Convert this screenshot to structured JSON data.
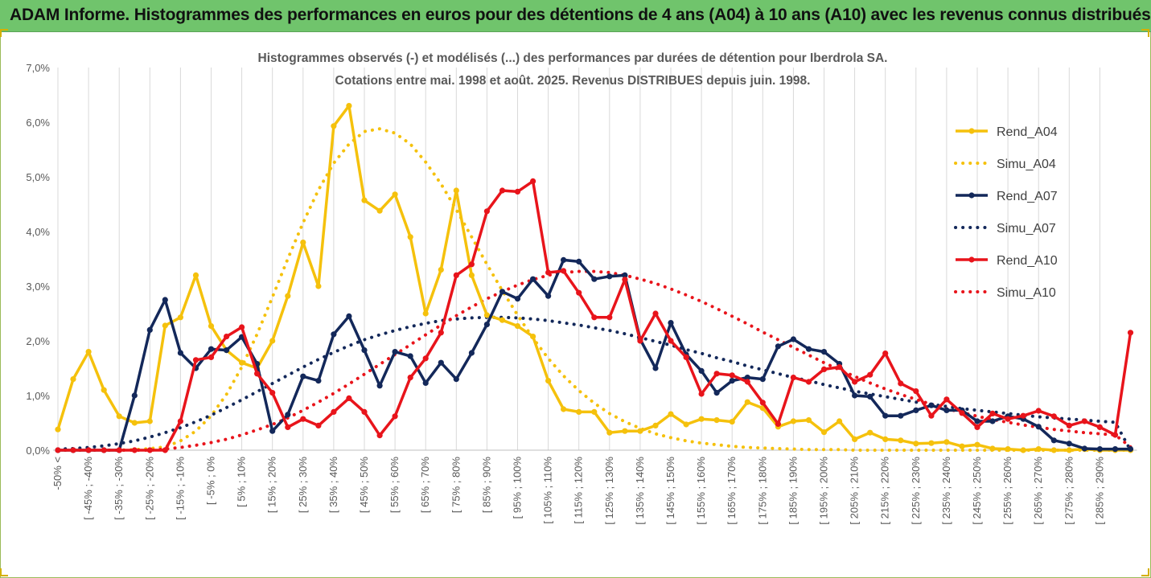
{
  "banner": {
    "title": "ADAM Informe. Histogrammes des performances en euros pour des détentions de 4 ans (A04) à 10 ans (A10) avec les revenus connus distribués"
  },
  "chart_data": {
    "type": "line",
    "title_line1": "Histogrammes observés (-) et modélisés (...) des performances par durées de détention pour Iberdrola SA.",
    "title_line2": "Cotations entre mai. 1998 et août. 2025.  Revenus DISTRIBUES depuis juin. 1998.",
    "ylim": [
      0,
      7
    ],
    "yticks": [
      "0,0%",
      "1,0%",
      "2,0%",
      "3,0%",
      "4,0%",
      "5,0%",
      "6,0%",
      "7,0%"
    ],
    "grid": "vertical",
    "legend_position": "right",
    "x_tick_labels": [
      "-50% <",
      "[ -45% ; -40%",
      "[ -35% ; -30%",
      "[ -25% ; -20%",
      "[ -15% ; -10%",
      "[ -5% ; 0%",
      "[ 5% ; 10%",
      "[ 15% ; 20%",
      "[ 25% ; 30%",
      "[ 35% ; 40%",
      "[ 45% ; 50%",
      "[ 55% ; 60%",
      "[ 65% ; 70%",
      "[ 75% ; 80%",
      "[ 85% ; 90%",
      "[ 95% ; 100%",
      "[ 105% ; 110%",
      "[ 115% ; 120%",
      "[ 125% ; 130%",
      "[ 135% ; 140%",
      "[ 145% ; 150%",
      "[ 155% ; 160%",
      "[ 165% ; 170%",
      "[ 175% ; 180%",
      "[ 185% ; 190%",
      "[ 195% ; 200%",
      "[ 205% ; 210%",
      "[ 215% ; 220%",
      "[ 225% ; 230%",
      "[ 235% ; 240%",
      "[ 245% ; 250%",
      "[ 255% ; 260%",
      "[ 265% ; 270%",
      "[ 275% ; 280%",
      "[ 285% ; 290%"
    ],
    "series": [
      {
        "name": "Rend_A04",
        "style": "solid",
        "color": "#f5c10c",
        "values": [
          0.38,
          1.3,
          1.8,
          1.1,
          0.62,
          0.5,
          0.53,
          2.28,
          2.43,
          3.2,
          2.27,
          1.83,
          1.6,
          1.5,
          2.0,
          2.82,
          3.8,
          3.0,
          5.93,
          6.3,
          4.57,
          4.38,
          4.68,
          3.9,
          2.5,
          3.3,
          4.75,
          3.2,
          2.47,
          2.38,
          2.27,
          2.08,
          1.27,
          0.75,
          0.7,
          0.7,
          0.32,
          0.35,
          0.35,
          0.45,
          0.66,
          0.47,
          0.57,
          0.55,
          0.52,
          0.88,
          0.77,
          0.43,
          0.53,
          0.55,
          0.33,
          0.53,
          0.2,
          0.32,
          0.2,
          0.18,
          0.12,
          0.13,
          0.15,
          0.07,
          0.1,
          0.03,
          0.02,
          0.0,
          0.02,
          0.0,
          0.0,
          0.02,
          0.0,
          0.0,
          0.0
        ]
      },
      {
        "name": "Simu_A04",
        "style": "dotted",
        "color": "#f5c10c",
        "values": [
          0.0,
          0.0,
          0.0,
          0.0,
          0.0,
          0.01,
          0.03,
          0.06,
          0.17,
          0.35,
          0.63,
          1.02,
          1.52,
          2.12,
          2.8,
          3.5,
          4.16,
          4.76,
          5.25,
          5.6,
          5.83,
          5.88,
          5.8,
          5.6,
          5.27,
          4.87,
          4.4,
          3.9,
          3.4,
          2.92,
          2.47,
          2.05,
          1.68,
          1.36,
          1.09,
          0.86,
          0.67,
          0.52,
          0.4,
          0.3,
          0.23,
          0.17,
          0.13,
          0.1,
          0.07,
          0.05,
          0.04,
          0.03,
          0.02,
          0.01,
          0.01,
          0.01,
          0.0,
          0.0,
          0.0,
          0.0,
          0.0,
          0.0,
          0.0,
          0.0,
          0.0,
          0.0,
          0.0,
          0.0,
          0.0,
          0.0,
          0.0,
          0.0,
          0.0,
          0.0,
          0.0
        ]
      },
      {
        "name": "Rend_A07",
        "style": "solid",
        "color": "#13285a",
        "values": [
          0.0,
          0.0,
          0.0,
          0.0,
          0.0,
          1.0,
          2.2,
          2.75,
          1.78,
          1.5,
          1.85,
          1.83,
          2.07,
          1.58,
          0.35,
          0.65,
          1.35,
          1.27,
          2.12,
          2.45,
          1.83,
          1.18,
          1.8,
          1.72,
          1.23,
          1.6,
          1.3,
          1.78,
          2.3,
          2.9,
          2.77,
          3.13,
          2.82,
          3.48,
          3.45,
          3.13,
          3.18,
          3.2,
          2.03,
          1.5,
          2.33,
          1.75,
          1.45,
          1.05,
          1.27,
          1.33,
          1.3,
          1.9,
          2.03,
          1.85,
          1.8,
          1.58,
          1.0,
          0.98,
          0.63,
          0.63,
          0.73,
          0.82,
          0.73,
          0.73,
          0.53,
          0.53,
          0.62,
          0.57,
          0.43,
          0.18,
          0.12,
          0.03,
          0.02,
          0.02,
          0.02
        ]
      },
      {
        "name": "Simu_A07",
        "style": "dotted",
        "color": "#13285a",
        "values": [
          0.02,
          0.03,
          0.05,
          0.08,
          0.12,
          0.17,
          0.24,
          0.32,
          0.41,
          0.52,
          0.64,
          0.78,
          0.92,
          1.07,
          1.22,
          1.37,
          1.52,
          1.66,
          1.79,
          1.91,
          2.02,
          2.11,
          2.19,
          2.26,
          2.32,
          2.37,
          2.4,
          2.42,
          2.43,
          2.43,
          2.42,
          2.4,
          2.37,
          2.33,
          2.29,
          2.24,
          2.19,
          2.13,
          2.06,
          1.99,
          1.92,
          1.84,
          1.77,
          1.69,
          1.62,
          1.54,
          1.47,
          1.4,
          1.33,
          1.27,
          1.2,
          1.14,
          1.08,
          1.03,
          0.98,
          0.93,
          0.88,
          0.84,
          0.8,
          0.76,
          0.73,
          0.7,
          0.67,
          0.64,
          0.61,
          0.59,
          0.57,
          0.55,
          0.53,
          0.51,
          0.0
        ]
      },
      {
        "name": "Rend_A10",
        "style": "solid",
        "color": "#e8141b",
        "values": [
          0.0,
          0.0,
          0.0,
          0.0,
          0.0,
          0.0,
          0.0,
          0.0,
          0.53,
          1.65,
          1.7,
          2.08,
          2.25,
          1.4,
          1.05,
          0.42,
          0.57,
          0.45,
          0.7,
          0.95,
          0.7,
          0.27,
          0.62,
          1.33,
          1.68,
          2.15,
          3.2,
          3.4,
          4.37,
          4.75,
          4.73,
          4.92,
          3.25,
          3.28,
          2.88,
          2.43,
          2.43,
          3.12,
          2.0,
          2.5,
          2.0,
          1.7,
          1.03,
          1.4,
          1.37,
          1.25,
          0.87,
          0.48,
          1.33,
          1.25,
          1.48,
          1.52,
          1.25,
          1.38,
          1.77,
          1.22,
          1.08,
          0.63,
          0.93,
          0.68,
          0.42,
          0.67,
          0.57,
          0.63,
          0.72,
          0.62,
          0.45,
          0.53,
          0.42,
          0.28,
          2.15
        ]
      },
      {
        "name": "Simu_A10",
        "style": "dotted",
        "color": "#e8141b",
        "values": [
          0.0,
          0.0,
          0.0,
          0.0,
          0.0,
          0.0,
          0.0,
          0.02,
          0.05,
          0.09,
          0.14,
          0.2,
          0.28,
          0.37,
          0.47,
          0.59,
          0.73,
          0.88,
          1.04,
          1.21,
          1.39,
          1.57,
          1.75,
          1.93,
          2.11,
          2.29,
          2.46,
          2.62,
          2.77,
          2.9,
          3.02,
          3.12,
          3.2,
          3.25,
          3.27,
          3.27,
          3.25,
          3.2,
          3.13,
          3.05,
          2.95,
          2.84,
          2.72,
          2.59,
          2.45,
          2.31,
          2.16,
          2.02,
          1.88,
          1.74,
          1.6,
          1.47,
          1.35,
          1.23,
          1.12,
          1.02,
          0.93,
          0.84,
          0.76,
          0.69,
          0.62,
          0.56,
          0.51,
          0.46,
          0.42,
          0.38,
          0.35,
          0.32,
          0.3,
          0.28,
          0.06
        ]
      }
    ]
  }
}
